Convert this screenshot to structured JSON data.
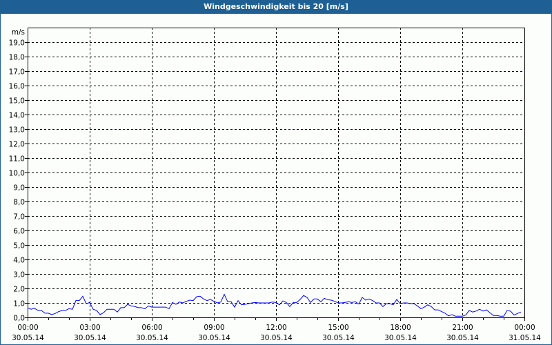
{
  "chart_data": {
    "type": "line",
    "title": "Windgeschwindigkeit bis 20 [m/s]",
    "ylabel": "m/s",
    "ylim": [
      0,
      20
    ],
    "yticks": [
      "0,0",
      "1,0",
      "2,0",
      "3,0",
      "4,0",
      "5,0",
      "6,0",
      "7,0",
      "8,0",
      "9,0",
      "10,0",
      "11,0",
      "12,0",
      "13,0",
      "14,0",
      "15,0",
      "16,0",
      "17,0",
      "18,0",
      "19,0"
    ],
    "xticks": [
      {
        "time": "00:00",
        "date": "30.05.14"
      },
      {
        "time": "03:00",
        "date": "30.05.14"
      },
      {
        "time": "06:00",
        "date": "30.05.14"
      },
      {
        "time": "09:00",
        "date": "30.05.14"
      },
      {
        "time": "12:00",
        "date": "30.05.14"
      },
      {
        "time": "15:00",
        "date": "30.05.14"
      },
      {
        "time": "18:00",
        "date": "30.05.14"
      },
      {
        "time": "21:00",
        "date": "30.05.14"
      },
      {
        "time": "00:00",
        "date": "31.05.14"
      }
    ],
    "xlim_hours": [
      0,
      24
    ],
    "grid": true,
    "line_color": "#0000ff",
    "series": [
      {
        "x_hours_step": "10 min",
        "values": [
          0.67,
          0.56,
          0.63,
          0.48,
          0.48,
          0.29,
          0.29,
          0.19,
          0.27,
          0.4,
          0.48,
          0.48,
          0.6,
          0.56,
          1.16,
          1.16,
          1.46,
          0.95,
          1.03,
          0.56,
          0.48,
          0.19,
          0.32,
          0.56,
          0.56,
          0.56,
          0.37,
          0.67,
          0.67,
          0.9,
          0.79,
          0.76,
          0.67,
          0.67,
          0.59,
          0.79,
          0.71,
          0.71,
          0.71,
          0.71,
          0.71,
          0.6,
          1.03,
          0.9,
          1.06,
          1.0,
          1.11,
          1.19,
          1.16,
          1.43,
          1.46,
          1.27,
          1.16,
          1.24,
          1.11,
          1.0,
          1.06,
          1.59,
          1.08,
          1.08,
          0.71,
          1.16,
          0.87,
          0.9,
          0.95,
          1.0,
          1.03,
          1.0,
          1.0,
          1.0,
          1.0,
          1.06,
          1.03,
          0.87,
          1.14,
          1.03,
          0.75,
          1.03,
          1.03,
          1.24,
          1.51,
          1.38,
          1.03,
          1.27,
          1.27,
          1.08,
          1.32,
          1.22,
          1.19,
          1.11,
          1.0,
          1.0,
          1.03,
          1.08,
          1.03,
          1.08,
          0.92,
          1.38,
          1.19,
          1.27,
          1.16,
          1.0,
          1.0,
          0.75,
          0.95,
          0.95,
          0.87,
          1.24,
          0.95,
          1.0,
          1.0,
          0.95,
          0.95,
          0.79,
          0.6,
          0.71,
          0.87,
          0.75,
          0.52,
          0.52,
          0.4,
          0.29,
          0.11,
          0.19,
          0.08,
          0.08,
          0.08,
          0.16,
          0.48,
          0.37,
          0.44,
          0.56,
          0.44,
          0.52,
          0.32,
          0.13,
          0.13,
          0.08,
          0.08,
          0.48,
          0.43,
          0.16,
          0.27,
          0.37
        ]
      }
    ]
  }
}
